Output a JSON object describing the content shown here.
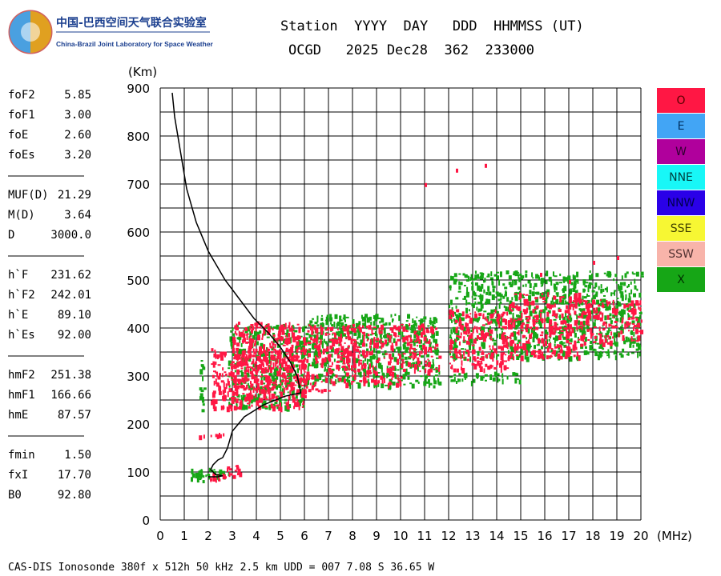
{
  "header": {
    "logo_cn": "中国-巴西空间天气联合实验室",
    "logo_en": "China-Brazil Joint Laboratory for Space Weather",
    "station_header": "Station  YYYY  DAY   DDD  HHMMSS (UT)",
    "station_values": "OCGD   2025 Dec28  362  233000"
  },
  "params": {
    "group1": [
      {
        "label": "foF2",
        "value": "5.85"
      },
      {
        "label": "foF1",
        "value": "3.00"
      },
      {
        "label": "foE",
        "value": "2.60"
      },
      {
        "label": "foEs",
        "value": "3.20"
      }
    ],
    "group2": [
      {
        "label": "MUF(D)",
        "value": "21.29"
      },
      {
        "label": "M(D)",
        "value": "3.64"
      },
      {
        "label": "D",
        "value": "3000.0"
      }
    ],
    "group3": [
      {
        "label": "h`F",
        "value": "231.62"
      },
      {
        "label": "h`F2",
        "value": "242.01"
      },
      {
        "label": "h`E",
        "value": "89.10"
      },
      {
        "label": "h`Es",
        "value": "92.00"
      }
    ],
    "group4": [
      {
        "label": "hmF2",
        "value": "251.38"
      },
      {
        "label": "hmF1",
        "value": "166.66"
      },
      {
        "label": "hmE",
        "value": "87.57"
      }
    ],
    "group5": [
      {
        "label": "fmin",
        "value": "1.50"
      },
      {
        "label": "fxI",
        "value": "17.70"
      },
      {
        "label": "B0",
        "value": "92.80"
      }
    ]
  },
  "legend": [
    {
      "label": "O",
      "color": "#ff1744",
      "text_color": "#5a0000"
    },
    {
      "label": "E",
      "color": "#42a5f5",
      "text_color": "#003060"
    },
    {
      "label": "W",
      "color": "#b0009c",
      "text_color": "#300030"
    },
    {
      "label": "NNE",
      "color": "#18f7f7",
      "text_color": "#004040"
    },
    {
      "label": "NNW",
      "color": "#2a00e8",
      "text_color": "#000050"
    },
    {
      "label": "SSE",
      "color": "#f7f733",
      "text_color": "#404000"
    },
    {
      "label": "SSW",
      "color": "#f8b4aa",
      "text_color": "#503030"
    },
    {
      "label": "X",
      "color": "#16a616",
      "text_color": "#003000"
    }
  ],
  "footer": "CAS-DIS Ionosonde 380f x 512h 50 kHz 2.5 km UDD = 007 7.08 S 36.65 W",
  "chart_data": {
    "type": "scatter",
    "ylabel": "(Km)",
    "xlabel": "(MHz)",
    "xlim": [
      0,
      20
    ],
    "ylim": [
      0,
      900
    ],
    "x_ticks": [
      0,
      1,
      2,
      3,
      4,
      5,
      6,
      7,
      8,
      9,
      10,
      11,
      12,
      13,
      14,
      15,
      16,
      17,
      18,
      19,
      20
    ],
    "y_ticks": [
      0,
      100,
      200,
      300,
      400,
      500,
      600,
      700,
      800,
      900
    ],
    "grid": true,
    "series": [
      {
        "name": "O",
        "color": "#ff1744",
        "clusters": [
          {
            "x": [
              1.9,
              2.7
            ],
            "y": [
              85,
              98
            ]
          },
          {
            "x": [
              2.3,
              3.3
            ],
            "y": [
              90,
              115
            ]
          },
          {
            "x": [
              1.5,
              2.7
            ],
            "y": [
              176,
              184
            ]
          },
          {
            "x": [
              2.1,
              6.0
            ],
            "y": [
              235,
              360
            ]
          },
          {
            "x": [
              3.0,
              7.0
            ],
            "y": [
              270,
              415
            ]
          },
          {
            "x": [
              7.0,
              10.0
            ],
            "y": [
              285,
              410
            ]
          },
          {
            "x": [
              10.0,
              11.6
            ],
            "y": [
              310,
              410
            ]
          },
          {
            "x": [
              12.0,
              14.5
            ],
            "y": [
              315,
              440
            ]
          },
          {
            "x": [
              14.5,
              17.5
            ],
            "y": [
              340,
              475
            ]
          },
          {
            "x": [
              17.5,
              20.0
            ],
            "y": [
              370,
              460
            ]
          }
        ],
        "scattered_points": [
          {
            "x": 13.5,
            "y": 742
          },
          {
            "x": 18.0,
            "y": 540
          },
          {
            "x": 19.0,
            "y": 550
          },
          {
            "x": 17.0,
            "y": 500
          },
          {
            "x": 15.8,
            "y": 515
          },
          {
            "x": 12.3,
            "y": 732
          },
          {
            "x": 11.0,
            "y": 702
          }
        ]
      },
      {
        "name": "X",
        "color": "#16a616",
        "clusters": [
          {
            "x": [
              1.6,
              1.8
            ],
            "y": [
              220,
              340
            ]
          },
          {
            "x": [
              1.1,
              3.0
            ],
            "y": [
              83,
              110
            ]
          },
          {
            "x": [
              2.8,
              6.0
            ],
            "y": [
              235,
              410
            ]
          },
          {
            "x": [
              6.0,
              11.6
            ],
            "y": [
              280,
              430
            ]
          },
          {
            "x": [
              12.0,
              15.0
            ],
            "y": [
              290,
              310
            ]
          },
          {
            "x": [
              12.0,
              20.0
            ],
            "y": [
              340,
              520
            ]
          }
        ]
      }
    ],
    "profile_curve": {
      "x": [
        0.5,
        0.6,
        0.8,
        1.1,
        1.5,
        2.0,
        2.7,
        3.3,
        3.9,
        4.5,
        5.0,
        5.4,
        5.7,
        5.85,
        5.2,
        4.3,
        3.5,
        3.0,
        2.8,
        2.6,
        2.4,
        2.2,
        2.1,
        2.3,
        2.6,
        2.4,
        2.0
      ],
      "y": [
        890,
        840,
        780,
        690,
        620,
        560,
        500,
        460,
        420,
        390,
        360,
        330,
        300,
        265,
        258,
        240,
        215,
        185,
        150,
        130,
        125,
        115,
        105,
        95,
        92,
        90,
        90
      ]
    }
  }
}
